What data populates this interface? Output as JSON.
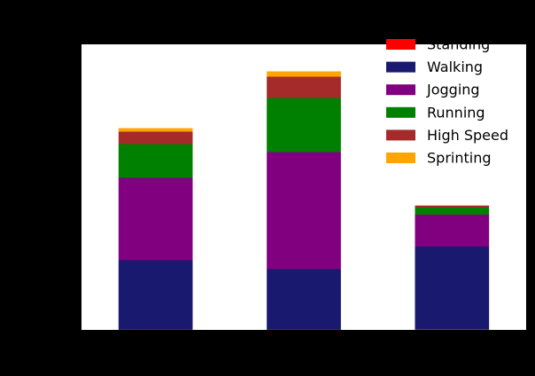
{
  "chart_data": {
    "type": "stacked-bar",
    "categories": [
      null,
      null,
      null
    ],
    "ylim": [
      0,
      322
    ],
    "legend": "upper right",
    "series": [
      {
        "name": "Standing",
        "color": "#ff0000",
        "values": [
          0.5,
          0.5,
          1
        ]
      },
      {
        "name": "Walking",
        "color": "#191970",
        "values": [
          78,
          68,
          93
        ]
      },
      {
        "name": "Jogging",
        "color": "#800080",
        "values": [
          93,
          132,
          36
        ]
      },
      {
        "name": "Running",
        "color": "#008000",
        "values": [
          38,
          61,
          8
        ]
      },
      {
        "name": "High Speed",
        "color": "#a52a2a",
        "values": [
          14,
          24,
          2
        ]
      },
      {
        "name": "Sprinting",
        "color": "#ffa500",
        "values": [
          4,
          6,
          0.5
        ]
      }
    ]
  }
}
